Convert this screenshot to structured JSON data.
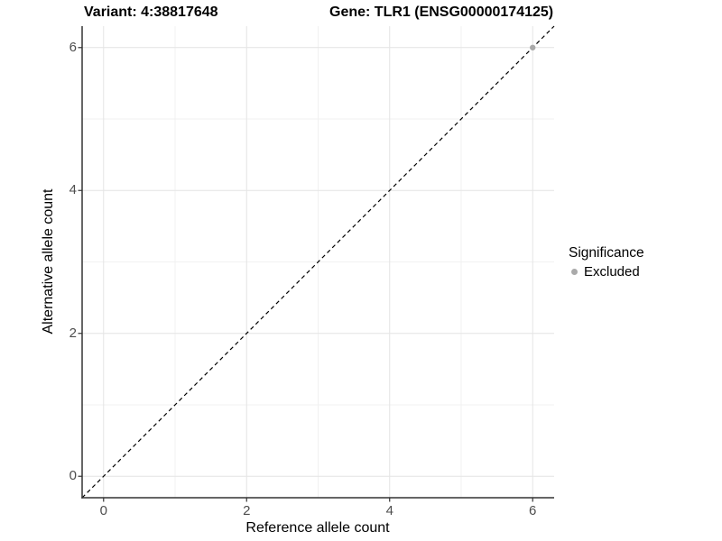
{
  "titles": {
    "variant": "Variant: 4:38817648",
    "gene": "Gene: TLR1 (ENSG00000174125)"
  },
  "axes": {
    "x": {
      "label": "Reference allele count",
      "ticks": [
        0,
        2,
        4,
        6
      ]
    },
    "y": {
      "label": "Alternative allele count",
      "ticks": [
        0,
        2,
        4,
        6
      ]
    }
  },
  "legend": {
    "title": "Significance",
    "items": [
      {
        "label": "Excluded",
        "color": "#aaaaaa"
      }
    ]
  },
  "chart_data": {
    "type": "scatter",
    "title": "Variant: 4:38817648 | Gene: TLR1 (ENSG00000174125)",
    "xlabel": "Reference allele count",
    "ylabel": "Alternative allele count",
    "xlim": [
      -0.3,
      6.3
    ],
    "ylim": [
      -0.3,
      6.3
    ],
    "series": [
      {
        "name": "Excluded",
        "color": "#aaaaaa",
        "points": [
          {
            "x": 6,
            "y": 6
          }
        ]
      }
    ],
    "reference_line": {
      "type": "identity",
      "style": "dashed",
      "color": "#000000",
      "from": [
        -0.3,
        -0.3
      ],
      "to": [
        6.3,
        6.3
      ]
    },
    "grid": {
      "major": [
        0,
        2,
        4,
        6
      ],
      "minor": [
        1,
        3,
        5
      ],
      "major_color": "#e4e4e4",
      "minor_color": "#f1f1f1"
    },
    "axis_color": "#333333",
    "legend_position": "right"
  }
}
